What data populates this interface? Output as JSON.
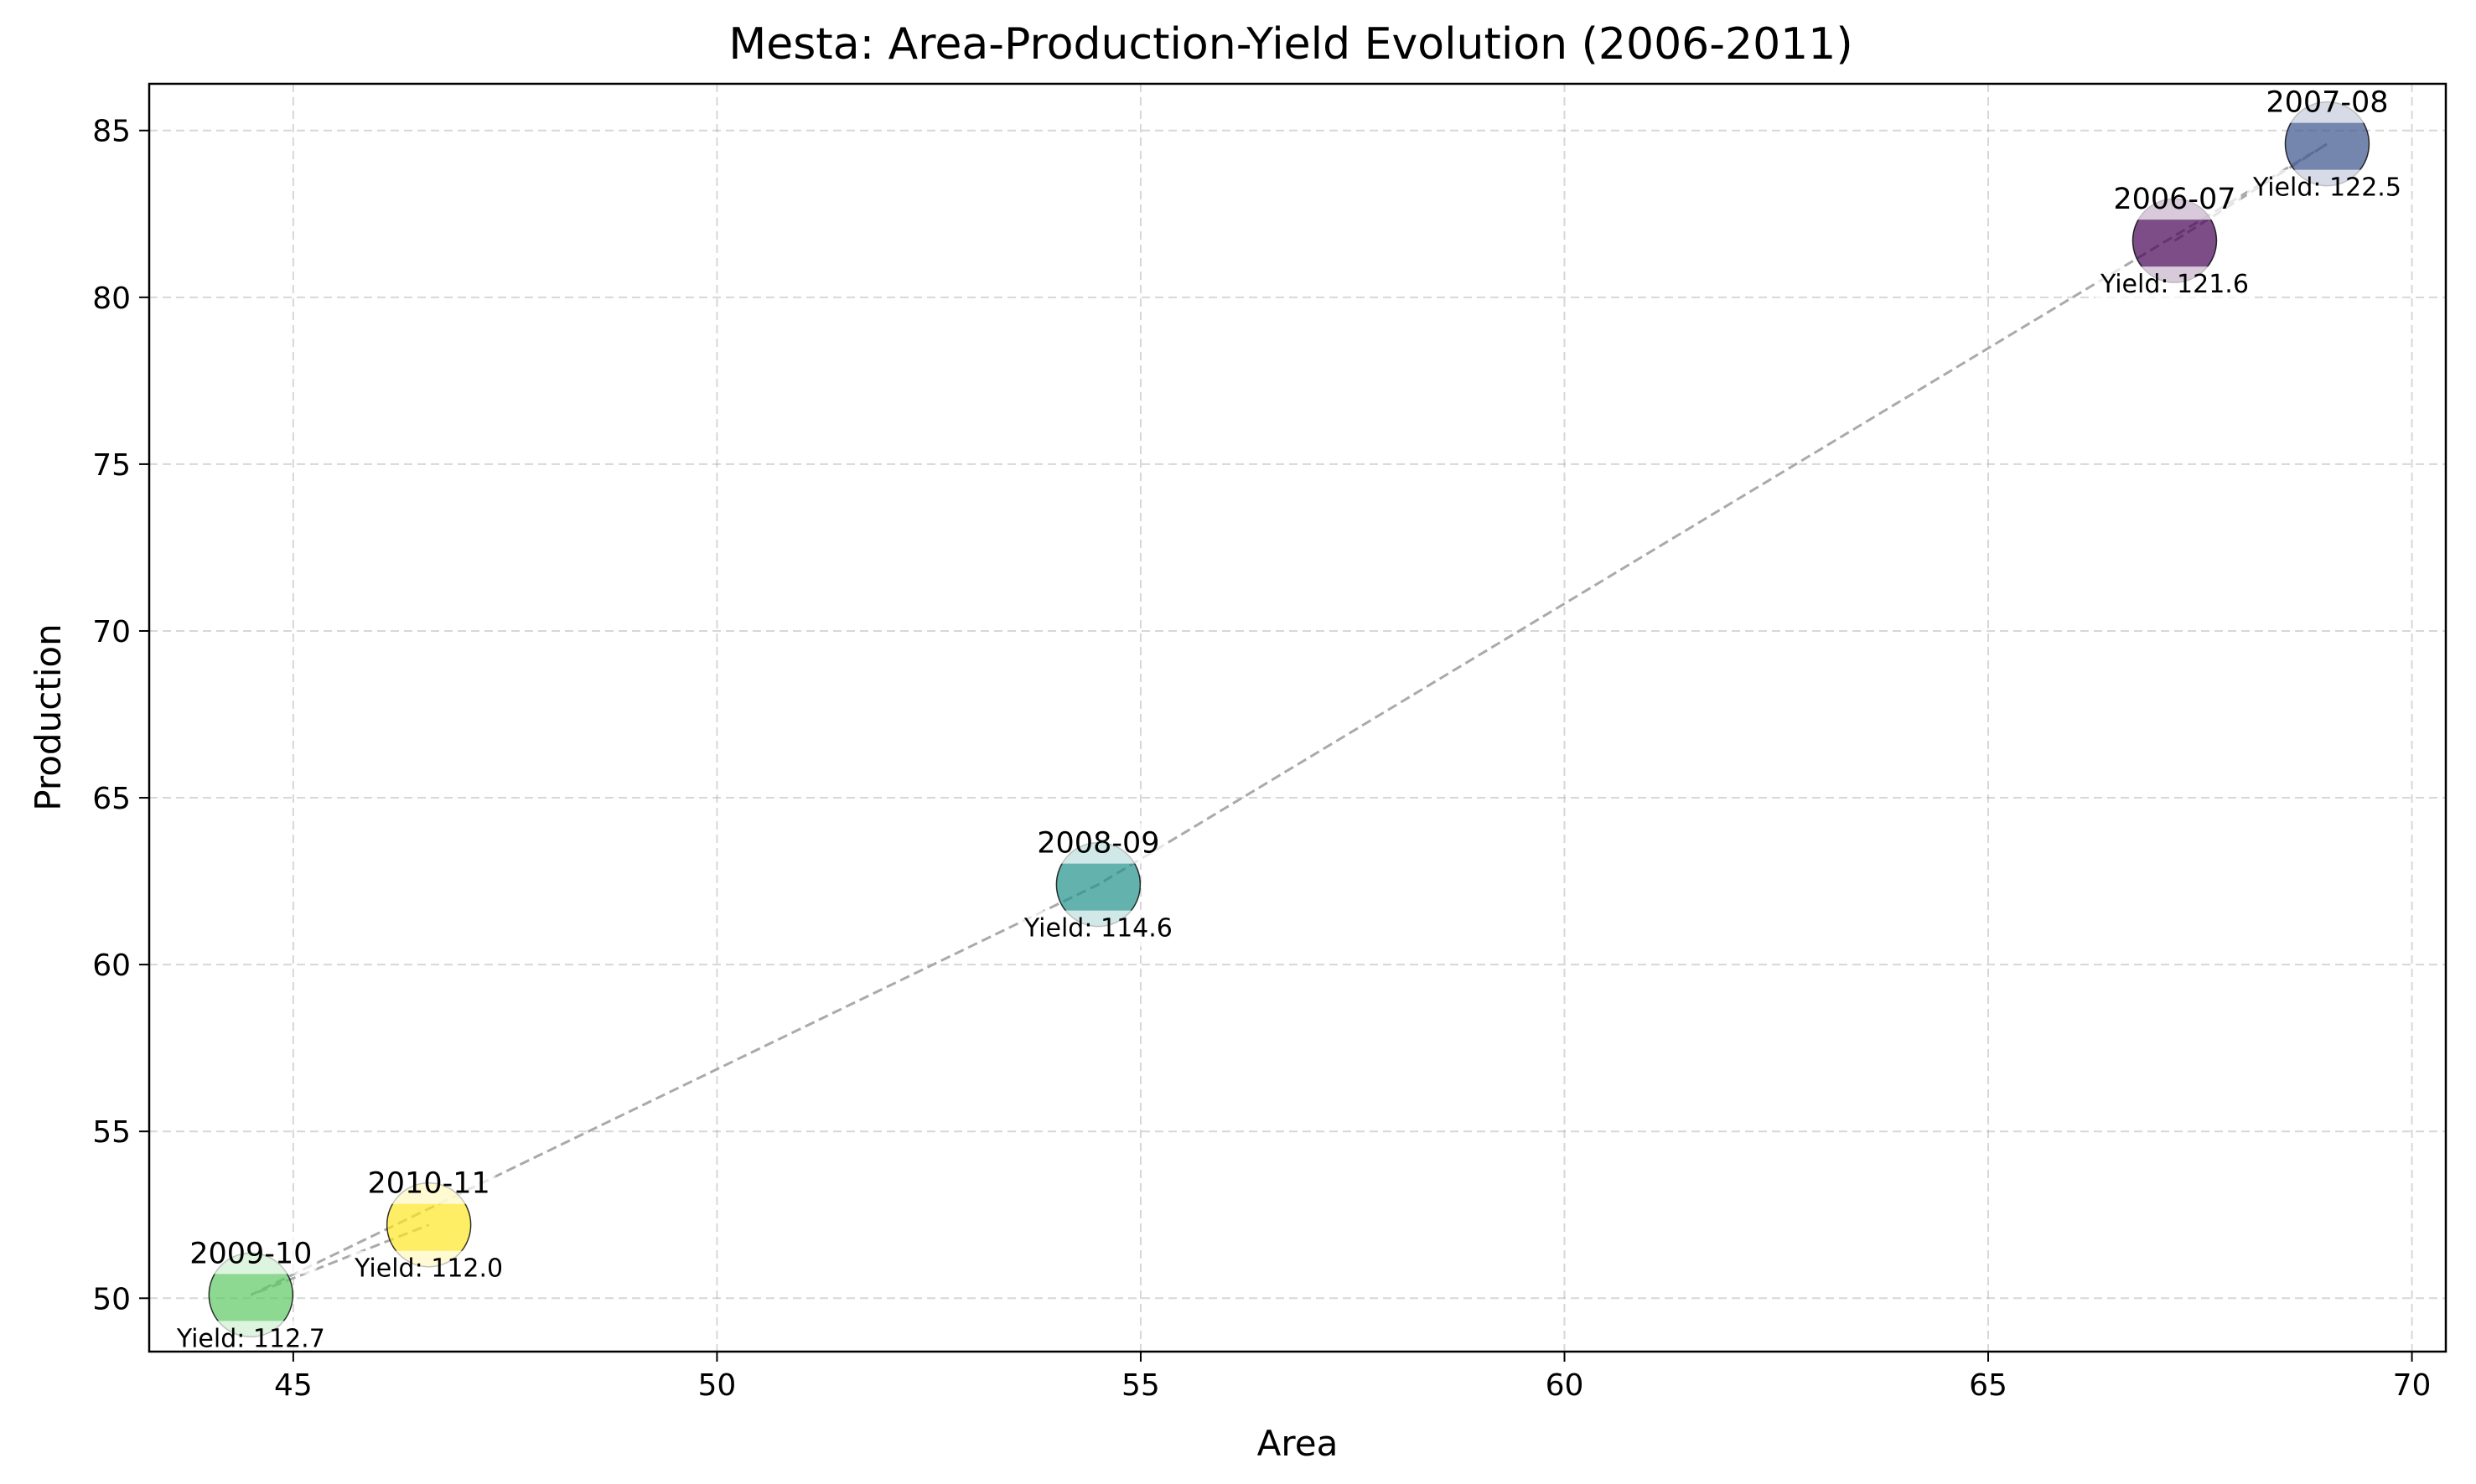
{
  "chart_data": {
    "type": "scatter",
    "title": "Mesta: Area-Production-Yield Evolution (2006-2011)",
    "xlabel": "Area",
    "ylabel": "Production",
    "xlim": [
      43.3,
      70.4
    ],
    "ylim": [
      48.4,
      86.4
    ],
    "xticks": [
      45,
      50,
      55,
      60,
      65,
      70
    ],
    "yticks": [
      50,
      55,
      60,
      65,
      70,
      75,
      80,
      85
    ],
    "grid": true,
    "connector": {
      "style": "dashed",
      "color": "#aaaaaa"
    },
    "points": [
      {
        "label": "2006-07",
        "x": 67.2,
        "y": 81.7,
        "yield_text": "Yield: 121.6",
        "color": "#440154"
      },
      {
        "label": "2007-08",
        "x": 69.0,
        "y": 84.6,
        "yield_text": "Yield: 122.5",
        "color": "#3b528b"
      },
      {
        "label": "2008-09",
        "x": 54.5,
        "y": 62.4,
        "yield_text": "Yield: 114.6",
        "color": "#21918c"
      },
      {
        "label": "2009-10",
        "x": 44.5,
        "y": 50.1,
        "yield_text": "Yield: 112.7",
        "color": "#5ec962"
      },
      {
        "label": "2010-11",
        "x": 46.6,
        "y": 52.2,
        "yield_text": "Yield: 112.0",
        "color": "#fde725"
      }
    ]
  }
}
